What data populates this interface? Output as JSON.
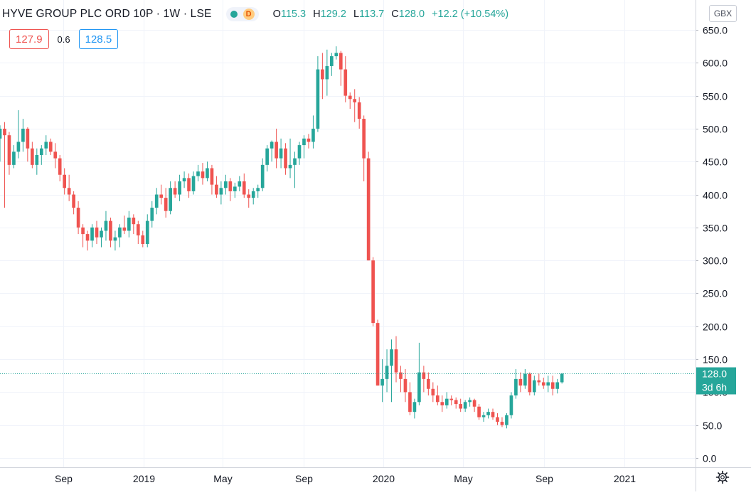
{
  "header": {
    "symbol_title": "HYVE GROUP PLC ORD 10P · 1W · LSE",
    "status_badge": "D",
    "ohlc": {
      "o_label": "O",
      "o_value": "115.3",
      "h_label": "H",
      "h_value": "129.2",
      "l_label": "L",
      "l_value": "113.7",
      "c_label": "C",
      "c_value": "128.0",
      "change": "+12.2 (+10.54%)"
    },
    "bid": "127.9",
    "spread": "0.6",
    "ask": "128.5",
    "currency_button": "GBX"
  },
  "price_marker": {
    "price": "128.0",
    "countdown": "3d 6h"
  },
  "colors": {
    "up": "#26a69a",
    "down": "#ef5350",
    "grid": "#f0f3fa",
    "axis_text": "#131722"
  },
  "icons": {
    "settings": "gear-icon"
  },
  "chart_data": {
    "type": "candlestick",
    "interval": "1W",
    "ylim": [
      -10,
      665
    ],
    "y_ticks": [
      0,
      50,
      100,
      150,
      200,
      250,
      300,
      350,
      400,
      450,
      500,
      550,
      600,
      650
    ],
    "y_tick_labels": [
      "0.0",
      "50.0",
      "100.0",
      "150.0",
      "200.0",
      "250.0",
      "300.0",
      "350.0",
      "400.0",
      "450.0",
      "500.0",
      "550.0",
      "600.0",
      "650.0"
    ],
    "x_ticks": [
      {
        "label": "Sep",
        "x": "2018-09-01"
      },
      {
        "label": "2019",
        "x": "2019-01-01"
      },
      {
        "label": "May",
        "x": "2019-05-01"
      },
      {
        "label": "Sep",
        "x": "2019-09-01"
      },
      {
        "label": "2020",
        "x": "2020-01-01"
      },
      {
        "label": "May",
        "x": "2020-05-01"
      },
      {
        "label": "Sep",
        "x": "2020-09-01"
      },
      {
        "label": "2021",
        "x": "2021-01-01"
      }
    ],
    "xlim": [
      "2018-05-28",
      "2021-04-19"
    ],
    "first_week": "2018-05-28",
    "last_price_line": 128.0,
    "candles": [
      [
        485,
        505,
        450,
        500
      ],
      [
        500,
        510,
        380,
        490
      ],
      [
        490,
        495,
        430,
        445
      ],
      [
        445,
        475,
        440,
        465
      ],
      [
        465,
        528,
        455,
        480
      ],
      [
        480,
        515,
        465,
        500
      ],
      [
        500,
        502,
        450,
        470
      ],
      [
        470,
        480,
        440,
        445
      ],
      [
        445,
        470,
        430,
        460
      ],
      [
        460,
        475,
        445,
        470
      ],
      [
        470,
        490,
        460,
        480
      ],
      [
        480,
        485,
        460,
        465
      ],
      [
        465,
        478,
        440,
        455
      ],
      [
        455,
        460,
        420,
        430
      ],
      [
        430,
        440,
        400,
        410
      ],
      [
        410,
        430,
        390,
        400
      ],
      [
        400,
        405,
        370,
        380
      ],
      [
        380,
        390,
        340,
        350
      ],
      [
        350,
        355,
        320,
        340
      ],
      [
        340,
        345,
        315,
        330
      ],
      [
        330,
        355,
        320,
        350
      ],
      [
        350,
        360,
        325,
        335
      ],
      [
        335,
        350,
        320,
        345
      ],
      [
        345,
        375,
        330,
        360
      ],
      [
        360,
        365,
        320,
        330
      ],
      [
        330,
        345,
        315,
        335
      ],
      [
        335,
        355,
        320,
        350
      ],
      [
        350,
        368,
        340,
        345
      ],
      [
        345,
        375,
        335,
        365
      ],
      [
        365,
        370,
        340,
        355
      ],
      [
        355,
        360,
        325,
        338
      ],
      [
        338,
        345,
        320,
        325
      ],
      [
        325,
        370,
        320,
        360
      ],
      [
        360,
        390,
        350,
        380
      ],
      [
        380,
        410,
        370,
        400
      ],
      [
        400,
        415,
        385,
        395
      ],
      [
        395,
        410,
        365,
        375
      ],
      [
        375,
        420,
        370,
        410
      ],
      [
        410,
        420,
        395,
        400
      ],
      [
        400,
        430,
        390,
        420
      ],
      [
        420,
        435,
        410,
        425
      ],
      [
        425,
        432,
        395,
        405
      ],
      [
        405,
        435,
        400,
        428
      ],
      [
        428,
        445,
        420,
        435
      ],
      [
        435,
        448,
        415,
        425
      ],
      [
        425,
        450,
        420,
        440
      ],
      [
        440,
        445,
        400,
        415
      ],
      [
        415,
        428,
        395,
        400
      ],
      [
        400,
        420,
        385,
        410
      ],
      [
        410,
        430,
        400,
        420
      ],
      [
        420,
        425,
        390,
        405
      ],
      [
        405,
        418,
        395,
        412
      ],
      [
        412,
        428,
        405,
        420
      ],
      [
        420,
        432,
        395,
        400
      ],
      [
        400,
        408,
        380,
        395
      ],
      [
        395,
        410,
        385,
        405
      ],
      [
        405,
        415,
        395,
        410
      ],
      [
        410,
        455,
        405,
        445
      ],
      [
        445,
        475,
        435,
        470
      ],
      [
        470,
        482,
        450,
        480
      ],
      [
        480,
        500,
        440,
        455
      ],
      [
        455,
        485,
        440,
        470
      ],
      [
        470,
        478,
        430,
        440
      ],
      [
        440,
        485,
        425,
        445
      ],
      [
        445,
        465,
        410,
        455
      ],
      [
        455,
        480,
        445,
        475
      ],
      [
        475,
        490,
        455,
        485
      ],
      [
        485,
        492,
        470,
        480
      ],
      [
        480,
        520,
        470,
        500
      ],
      [
        500,
        610,
        495,
        590
      ],
      [
        590,
        615,
        545,
        575
      ],
      [
        575,
        620,
        550,
        595
      ],
      [
        595,
        615,
        580,
        610
      ],
      [
        610,
        625,
        605,
        615
      ],
      [
        615,
        618,
        565,
        590
      ],
      [
        590,
        610,
        540,
        550
      ],
      [
        550,
        555,
        530,
        545
      ],
      [
        545,
        560,
        510,
        540
      ],
      [
        540,
        548,
        500,
        515
      ],
      [
        515,
        520,
        420,
        455
      ],
      [
        455,
        465,
        300,
        300
      ],
      [
        300,
        305,
        200,
        205
      ],
      [
        205,
        210,
        110,
        110
      ],
      [
        110,
        150,
        85,
        120
      ],
      [
        120,
        165,
        100,
        140
      ],
      [
        140,
        180,
        85,
        165
      ],
      [
        165,
        185,
        115,
        130
      ],
      [
        130,
        140,
        100,
        120
      ],
      [
        120,
        135,
        85,
        100
      ],
      [
        100,
        115,
        65,
        70
      ],
      [
        70,
        90,
        60,
        85
      ],
      [
        85,
        175,
        80,
        130
      ],
      [
        130,
        140,
        100,
        120
      ],
      [
        120,
        130,
        95,
        105
      ],
      [
        105,
        115,
        85,
        95
      ],
      [
        95,
        110,
        80,
        85
      ],
      [
        85,
        95,
        70,
        80
      ],
      [
        80,
        100,
        75,
        90
      ],
      [
        90,
        95,
        80,
        88
      ],
      [
        88,
        92,
        75,
        82
      ],
      [
        82,
        90,
        70,
        75
      ],
      [
        75,
        88,
        70,
        85
      ],
      [
        85,
        92,
        78,
        88
      ],
      [
        88,
        90,
        70,
        78
      ],
      [
        78,
        82,
        58,
        62
      ],
      [
        62,
        70,
        55,
        65
      ],
      [
        65,
        75,
        60,
        70
      ],
      [
        70,
        75,
        58,
        62
      ],
      [
        62,
        68,
        50,
        55
      ],
      [
        55,
        62,
        47,
        50
      ],
      [
        50,
        68,
        45,
        65
      ],
      [
        65,
        100,
        60,
        95
      ],
      [
        95,
        135,
        90,
        120
      ],
      [
        120,
        130,
        100,
        110
      ],
      [
        110,
        135,
        105,
        128
      ],
      [
        128,
        130,
        95,
        100
      ],
      [
        100,
        125,
        95,
        118
      ],
      [
        118,
        128,
        110,
        115
      ],
      [
        115,
        122,
        105,
        110
      ],
      [
        110,
        125,
        100,
        115
      ],
      [
        115,
        125,
        95,
        105
      ],
      [
        105,
        120,
        98,
        115
      ],
      [
        115,
        129,
        113,
        128
      ]
    ]
  }
}
